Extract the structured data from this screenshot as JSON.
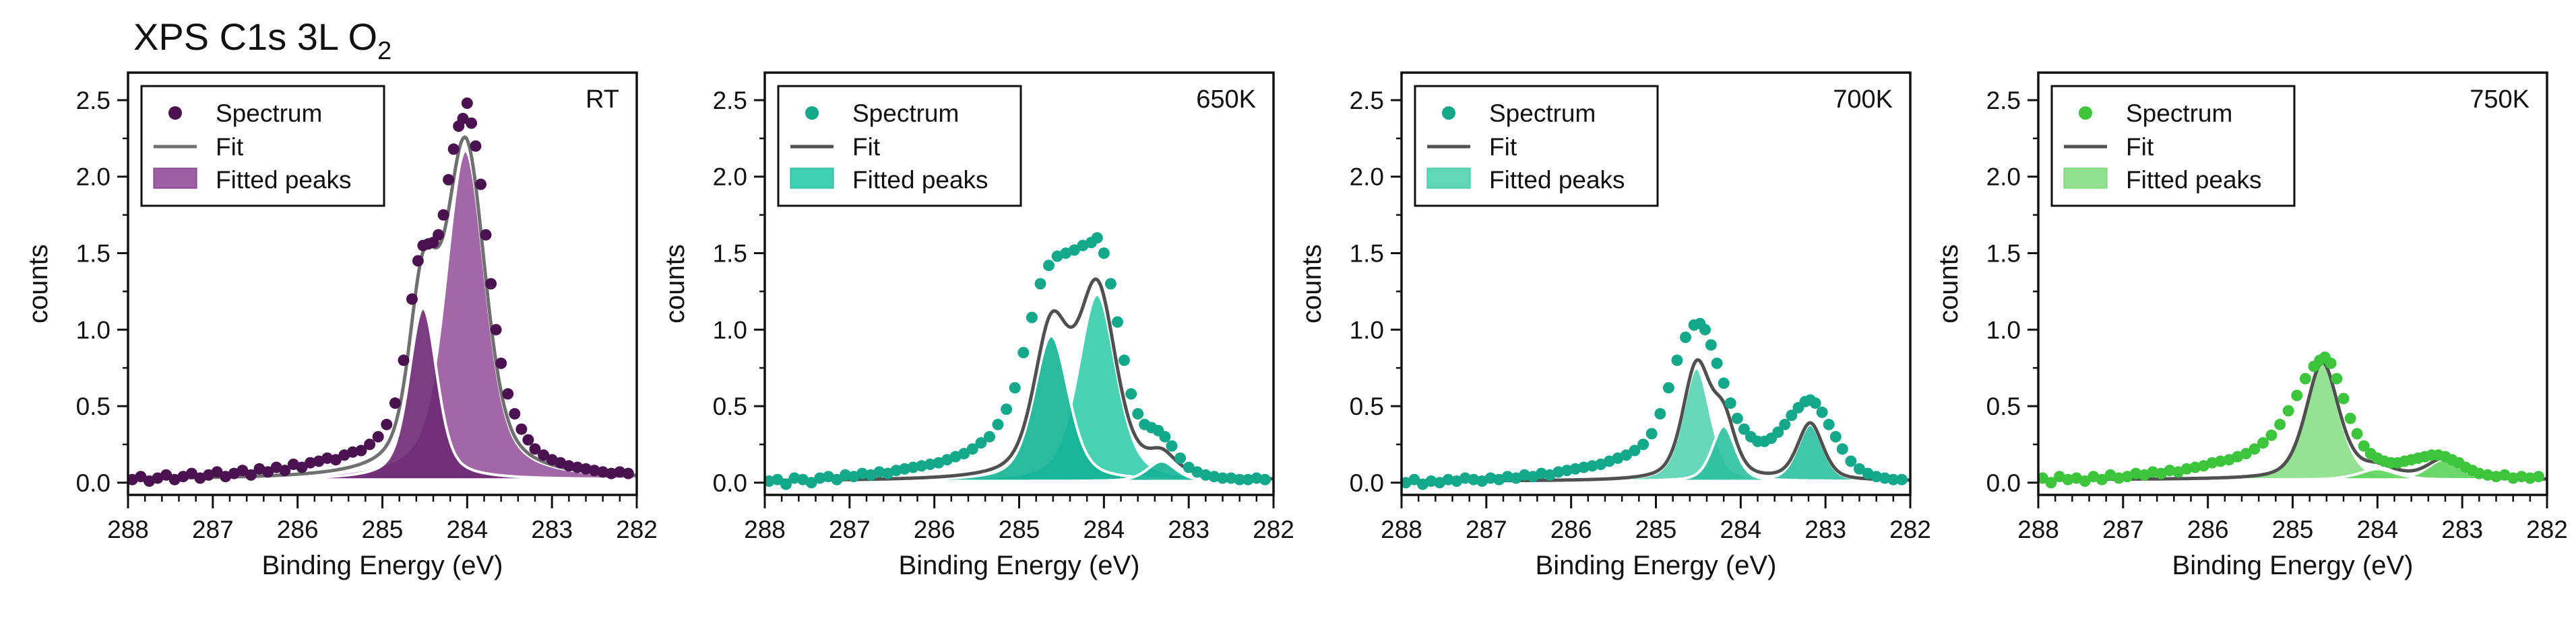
{
  "figure": {
    "title_main": "XPS C1s 3L O",
    "title_subscript": "2"
  },
  "legend_labels": {
    "spectrum": "Spectrum",
    "fit": "Fit",
    "peaks": "Fitted peaks"
  },
  "chart_data": [
    {
      "type": "line",
      "panel_label": "RT",
      "title": "XPS C1s 3L O2 — RT",
      "xlabel": "Binding Energy (eV)",
      "ylabel": "counts",
      "xlim": [
        288,
        282
      ],
      "ylim": [
        -0.08,
        2.68
      ],
      "x_ticks": [
        288,
        287,
        286,
        285,
        284,
        283,
        282
      ],
      "y_ticks": [
        0.0,
        0.5,
        1.0,
        1.5,
        2.0,
        2.5
      ],
      "x_tick_labels": [
        "288",
        "287",
        "286",
        "285",
        "284",
        "283",
        "282"
      ],
      "y_tick_labels": [
        "0.0",
        "0.5",
        "1.0",
        "1.5",
        "2.0",
        "2.5"
      ],
      "colors": {
        "points": "#4a1350",
        "peak_fill": "#9c5fa2",
        "peak_dark": "#6d2a73",
        "fit": "#707070",
        "peak_outline": "#ffffff"
      },
      "peaks": [
        {
          "center": 284.52,
          "amp": 1.12,
          "sigma": 0.16,
          "gamma": 0.22
        },
        {
          "center": 284.02,
          "amp": 2.15,
          "sigma": 0.22,
          "gamma": 0.32
        }
      ],
      "baseline": 0.02,
      "spectrum_points": [
        [
          287.95,
          0.02
        ],
        [
          287.85,
          0.04
        ],
        [
          287.75,
          0.01
        ],
        [
          287.65,
          0.03
        ],
        [
          287.55,
          0.05
        ],
        [
          287.45,
          0.02
        ],
        [
          287.35,
          0.04
        ],
        [
          287.25,
          0.06
        ],
        [
          287.15,
          0.03
        ],
        [
          287.05,
          0.05
        ],
        [
          286.95,
          0.07
        ],
        [
          286.85,
          0.04
        ],
        [
          286.75,
          0.06
        ],
        [
          286.65,
          0.08
        ],
        [
          286.55,
          0.05
        ],
        [
          286.45,
          0.09
        ],
        [
          286.35,
          0.07
        ],
        [
          286.25,
          0.1
        ],
        [
          286.15,
          0.08
        ],
        [
          286.05,
          0.12
        ],
        [
          285.95,
          0.1
        ],
        [
          285.85,
          0.13
        ],
        [
          285.75,
          0.14
        ],
        [
          285.65,
          0.16
        ],
        [
          285.55,
          0.15
        ],
        [
          285.45,
          0.18
        ],
        [
          285.35,
          0.2
        ],
        [
          285.25,
          0.21
        ],
        [
          285.15,
          0.25
        ],
        [
          285.05,
          0.3
        ],
        [
          284.95,
          0.38
        ],
        [
          284.85,
          0.52
        ],
        [
          284.75,
          0.8
        ],
        [
          284.65,
          1.2
        ],
        [
          284.58,
          1.45
        ],
        [
          284.52,
          1.55
        ],
        [
          284.46,
          1.56
        ],
        [
          284.4,
          1.57
        ],
        [
          284.34,
          1.62
        ],
        [
          284.28,
          1.75
        ],
        [
          284.22,
          1.98
        ],
        [
          284.16,
          2.18
        ],
        [
          284.1,
          2.33
        ],
        [
          284.05,
          2.38
        ],
        [
          284.0,
          2.48
        ],
        [
          283.95,
          2.35
        ],
        [
          283.9,
          2.2
        ],
        [
          283.84,
          1.95
        ],
        [
          283.78,
          1.62
        ],
        [
          283.72,
          1.3
        ],
        [
          283.66,
          1.0
        ],
        [
          283.6,
          0.78
        ],
        [
          283.52,
          0.58
        ],
        [
          283.44,
          0.45
        ],
        [
          283.36,
          0.35
        ],
        [
          283.28,
          0.28
        ],
        [
          283.2,
          0.22
        ],
        [
          283.1,
          0.18
        ],
        [
          283.0,
          0.15
        ],
        [
          282.9,
          0.13
        ],
        [
          282.8,
          0.11
        ],
        [
          282.7,
          0.1
        ],
        [
          282.6,
          0.09
        ],
        [
          282.5,
          0.08
        ],
        [
          282.4,
          0.07
        ],
        [
          282.3,
          0.06
        ],
        [
          282.2,
          0.07
        ],
        [
          282.1,
          0.06
        ]
      ]
    },
    {
      "type": "line",
      "panel_label": "650K",
      "title": "XPS C1s 3L O2 — 650K",
      "xlabel": "Binding Energy (eV)",
      "ylabel": "counts",
      "xlim": [
        288,
        282
      ],
      "ylim": [
        -0.08,
        2.68
      ],
      "x_ticks": [
        288,
        287,
        286,
        285,
        284,
        283,
        282
      ],
      "y_ticks": [
        0.0,
        0.5,
        1.0,
        1.5,
        2.0,
        2.5
      ],
      "x_tick_labels": [
        "288",
        "287",
        "286",
        "285",
        "284",
        "283",
        "282"
      ],
      "y_tick_labels": [
        "0.0",
        "0.5",
        "1.0",
        "1.5",
        "2.0",
        "2.5"
      ],
      "colors": {
        "points": "#14a88a",
        "peak_fill": "#3fcfb0",
        "peak_dark": "#13b394",
        "fit": "#505050",
        "peak_outline": "#ffffff"
      },
      "peaks": [
        {
          "center": 284.62,
          "amp": 0.95,
          "sigma": 0.2,
          "gamma": 0.26
        },
        {
          "center": 284.08,
          "amp": 1.22,
          "sigma": 0.22,
          "gamma": 0.28
        },
        {
          "center": 283.32,
          "amp": 0.13,
          "sigma": 0.18,
          "gamma": 0.18
        }
      ],
      "baseline": 0.01,
      "spectrum_points": [
        [
          287.95,
          0.01
        ],
        [
          287.85,
          0.02
        ],
        [
          287.75,
          -0.01
        ],
        [
          287.65,
          0.03
        ],
        [
          287.55,
          0.02
        ],
        [
          287.45,
          0.0
        ],
        [
          287.35,
          0.03
        ],
        [
          287.25,
          0.04
        ],
        [
          287.15,
          0.02
        ],
        [
          287.05,
          0.05
        ],
        [
          286.95,
          0.04
        ],
        [
          286.85,
          0.06
        ],
        [
          286.75,
          0.05
        ],
        [
          286.65,
          0.07
        ],
        [
          286.55,
          0.06
        ],
        [
          286.45,
          0.08
        ],
        [
          286.35,
          0.09
        ],
        [
          286.25,
          0.1
        ],
        [
          286.15,
          0.11
        ],
        [
          286.05,
          0.12
        ],
        [
          285.95,
          0.13
        ],
        [
          285.85,
          0.15
        ],
        [
          285.75,
          0.17
        ],
        [
          285.65,
          0.19
        ],
        [
          285.55,
          0.22
        ],
        [
          285.45,
          0.26
        ],
        [
          285.35,
          0.3
        ],
        [
          285.25,
          0.38
        ],
        [
          285.15,
          0.48
        ],
        [
          285.05,
          0.62
        ],
        [
          284.95,
          0.85
        ],
        [
          284.85,
          1.08
        ],
        [
          284.75,
          1.3
        ],
        [
          284.65,
          1.42
        ],
        [
          284.55,
          1.48
        ],
        [
          284.45,
          1.5
        ],
        [
          284.35,
          1.52
        ],
        [
          284.25,
          1.55
        ],
        [
          284.15,
          1.57
        ],
        [
          284.08,
          1.6
        ],
        [
          284.0,
          1.5
        ],
        [
          283.92,
          1.3
        ],
        [
          283.84,
          1.05
        ],
        [
          283.76,
          0.8
        ],
        [
          283.68,
          0.58
        ],
        [
          283.6,
          0.45
        ],
        [
          283.52,
          0.38
        ],
        [
          283.44,
          0.36
        ],
        [
          283.36,
          0.34
        ],
        [
          283.28,
          0.3
        ],
        [
          283.2,
          0.24
        ],
        [
          283.1,
          0.16
        ],
        [
          283.0,
          0.1
        ],
        [
          282.9,
          0.07
        ],
        [
          282.8,
          0.05
        ],
        [
          282.7,
          0.04
        ],
        [
          282.6,
          0.03
        ],
        [
          282.5,
          0.03
        ],
        [
          282.4,
          0.02
        ],
        [
          282.3,
          0.02
        ],
        [
          282.2,
          0.03
        ],
        [
          282.1,
          0.02
        ]
      ]
    },
    {
      "type": "line",
      "panel_label": "700K",
      "title": "XPS C1s 3L O2 — 700K",
      "xlabel": "Binding Energy (eV)",
      "ylabel": "counts",
      "xlim": [
        288,
        282
      ],
      "ylim": [
        -0.08,
        2.68
      ],
      "x_ticks": [
        288,
        287,
        286,
        285,
        284,
        283,
        282
      ],
      "y_ticks": [
        0.0,
        0.5,
        1.0,
        1.5,
        2.0,
        2.5
      ],
      "x_tick_labels": [
        "288",
        "287",
        "286",
        "285",
        "284",
        "283",
        "282"
      ],
      "y_tick_labels": [
        "0.0",
        "0.5",
        "1.0",
        "1.5",
        "2.0",
        "2.5"
      ],
      "colors": {
        "points": "#14a88a",
        "peak_fill": "#5fd6b6",
        "peak_dark": "#2cc09f",
        "fit": "#505050",
        "peak_outline": "#ffffff"
      },
      "peaks": [
        {
          "center": 284.52,
          "amp": 0.74,
          "sigma": 0.16,
          "gamma": 0.2
        },
        {
          "center": 284.2,
          "amp": 0.36,
          "sigma": 0.14,
          "gamma": 0.16
        },
        {
          "center": 283.18,
          "amp": 0.37,
          "sigma": 0.15,
          "gamma": 0.18
        }
      ],
      "baseline": 0.01,
      "spectrum_points": [
        [
          287.95,
          0.0
        ],
        [
          287.85,
          0.02
        ],
        [
          287.75,
          -0.01
        ],
        [
          287.65,
          0.01
        ],
        [
          287.55,
          0.0
        ],
        [
          287.45,
          0.02
        ],
        [
          287.35,
          0.01
        ],
        [
          287.25,
          0.03
        ],
        [
          287.15,
          0.02
        ],
        [
          287.05,
          0.01
        ],
        [
          286.95,
          0.03
        ],
        [
          286.85,
          0.02
        ],
        [
          286.75,
          0.04
        ],
        [
          286.65,
          0.03
        ],
        [
          286.55,
          0.05
        ],
        [
          286.45,
          0.04
        ],
        [
          286.35,
          0.06
        ],
        [
          286.25,
          0.05
        ],
        [
          286.15,
          0.07
        ],
        [
          286.05,
          0.08
        ],
        [
          285.95,
          0.09
        ],
        [
          285.85,
          0.1
        ],
        [
          285.75,
          0.11
        ],
        [
          285.65,
          0.12
        ],
        [
          285.55,
          0.14
        ],
        [
          285.45,
          0.16
        ],
        [
          285.35,
          0.18
        ],
        [
          285.25,
          0.21
        ],
        [
          285.15,
          0.25
        ],
        [
          285.05,
          0.32
        ],
        [
          284.95,
          0.45
        ],
        [
          284.85,
          0.62
        ],
        [
          284.75,
          0.8
        ],
        [
          284.65,
          0.95
        ],
        [
          284.55,
          1.03
        ],
        [
          284.48,
          1.04
        ],
        [
          284.42,
          1.0
        ],
        [
          284.35,
          0.9
        ],
        [
          284.28,
          0.78
        ],
        [
          284.2,
          0.65
        ],
        [
          284.12,
          0.52
        ],
        [
          284.04,
          0.42
        ],
        [
          283.96,
          0.35
        ],
        [
          283.88,
          0.3
        ],
        [
          283.8,
          0.27
        ],
        [
          283.72,
          0.27
        ],
        [
          283.64,
          0.29
        ],
        [
          283.56,
          0.33
        ],
        [
          283.48,
          0.38
        ],
        [
          283.4,
          0.44
        ],
        [
          283.32,
          0.49
        ],
        [
          283.24,
          0.53
        ],
        [
          283.18,
          0.54
        ],
        [
          283.12,
          0.52
        ],
        [
          283.04,
          0.46
        ],
        [
          282.96,
          0.38
        ],
        [
          282.88,
          0.3
        ],
        [
          282.8,
          0.22
        ],
        [
          282.7,
          0.14
        ],
        [
          282.6,
          0.09
        ],
        [
          282.5,
          0.06
        ],
        [
          282.4,
          0.04
        ],
        [
          282.3,
          0.03
        ],
        [
          282.2,
          0.02
        ],
        [
          282.1,
          0.02
        ]
      ]
    },
    {
      "type": "line",
      "panel_label": "750K",
      "title": "XPS C1s 3L O2 — 750K",
      "xlabel": "Binding Energy (eV)",
      "ylabel": "counts",
      "xlim": [
        288,
        282
      ],
      "ylim": [
        -0.08,
        2.68
      ],
      "x_ticks": [
        288,
        287,
        286,
        285,
        284,
        283,
        282
      ],
      "y_ticks": [
        0.0,
        0.5,
        1.0,
        1.5,
        2.0,
        2.5
      ],
      "x_tick_labels": [
        "288",
        "287",
        "286",
        "285",
        "284",
        "283",
        "282"
      ],
      "y_tick_labels": [
        "0.0",
        "0.5",
        "1.0",
        "1.5",
        "2.0",
        "2.5"
      ],
      "colors": {
        "points": "#3cc53c",
        "peak_fill": "#8fe08f",
        "peak_dark": "#5cd45c",
        "fit": "#505050",
        "peak_outline": "#ffffff"
      },
      "peaks": [
        {
          "center": 284.65,
          "amp": 0.76,
          "sigma": 0.2,
          "gamma": 0.22
        },
        {
          "center": 284.0,
          "amp": 0.07,
          "sigma": 0.25,
          "gamma": 0.2
        },
        {
          "center": 283.22,
          "amp": 0.13,
          "sigma": 0.2,
          "gamma": 0.22
        }
      ],
      "baseline": 0.02,
      "spectrum_points": [
        [
          287.95,
          0.03
        ],
        [
          287.85,
          0.0
        ],
        [
          287.75,
          0.04
        ],
        [
          287.65,
          0.02
        ],
        [
          287.55,
          0.03
        ],
        [
          287.45,
          0.01
        ],
        [
          287.35,
          0.04
        ],
        [
          287.25,
          0.02
        ],
        [
          287.15,
          0.05
        ],
        [
          287.05,
          0.03
        ],
        [
          286.95,
          0.04
        ],
        [
          286.85,
          0.06
        ],
        [
          286.75,
          0.05
        ],
        [
          286.65,
          0.07
        ],
        [
          286.55,
          0.06
        ],
        [
          286.45,
          0.08
        ],
        [
          286.35,
          0.07
        ],
        [
          286.25,
          0.09
        ],
        [
          286.15,
          0.1
        ],
        [
          286.05,
          0.11
        ],
        [
          285.95,
          0.13
        ],
        [
          285.85,
          0.14
        ],
        [
          285.75,
          0.15
        ],
        [
          285.65,
          0.17
        ],
        [
          285.55,
          0.19
        ],
        [
          285.45,
          0.22
        ],
        [
          285.35,
          0.26
        ],
        [
          285.25,
          0.31
        ],
        [
          285.15,
          0.38
        ],
        [
          285.05,
          0.47
        ],
        [
          284.95,
          0.57
        ],
        [
          284.85,
          0.68
        ],
        [
          284.75,
          0.76
        ],
        [
          284.68,
          0.8
        ],
        [
          284.62,
          0.82
        ],
        [
          284.55,
          0.78
        ],
        [
          284.48,
          0.68
        ],
        [
          284.4,
          0.55
        ],
        [
          284.32,
          0.42
        ],
        [
          284.24,
          0.32
        ],
        [
          284.16,
          0.24
        ],
        [
          284.08,
          0.19
        ],
        [
          284.0,
          0.16
        ],
        [
          283.92,
          0.14
        ],
        [
          283.84,
          0.13
        ],
        [
          283.76,
          0.13
        ],
        [
          283.68,
          0.14
        ],
        [
          283.6,
          0.15
        ],
        [
          283.52,
          0.16
        ],
        [
          283.44,
          0.17
        ],
        [
          283.36,
          0.18
        ],
        [
          283.28,
          0.18
        ],
        [
          283.2,
          0.17
        ],
        [
          283.12,
          0.15
        ],
        [
          283.04,
          0.13
        ],
        [
          282.96,
          0.1
        ],
        [
          282.88,
          0.08
        ],
        [
          282.8,
          0.06
        ],
        [
          282.7,
          0.05
        ],
        [
          282.6,
          0.04
        ],
        [
          282.5,
          0.05
        ],
        [
          282.4,
          0.03
        ],
        [
          282.3,
          0.04
        ],
        [
          282.2,
          0.03
        ],
        [
          282.1,
          0.04
        ]
      ]
    }
  ]
}
